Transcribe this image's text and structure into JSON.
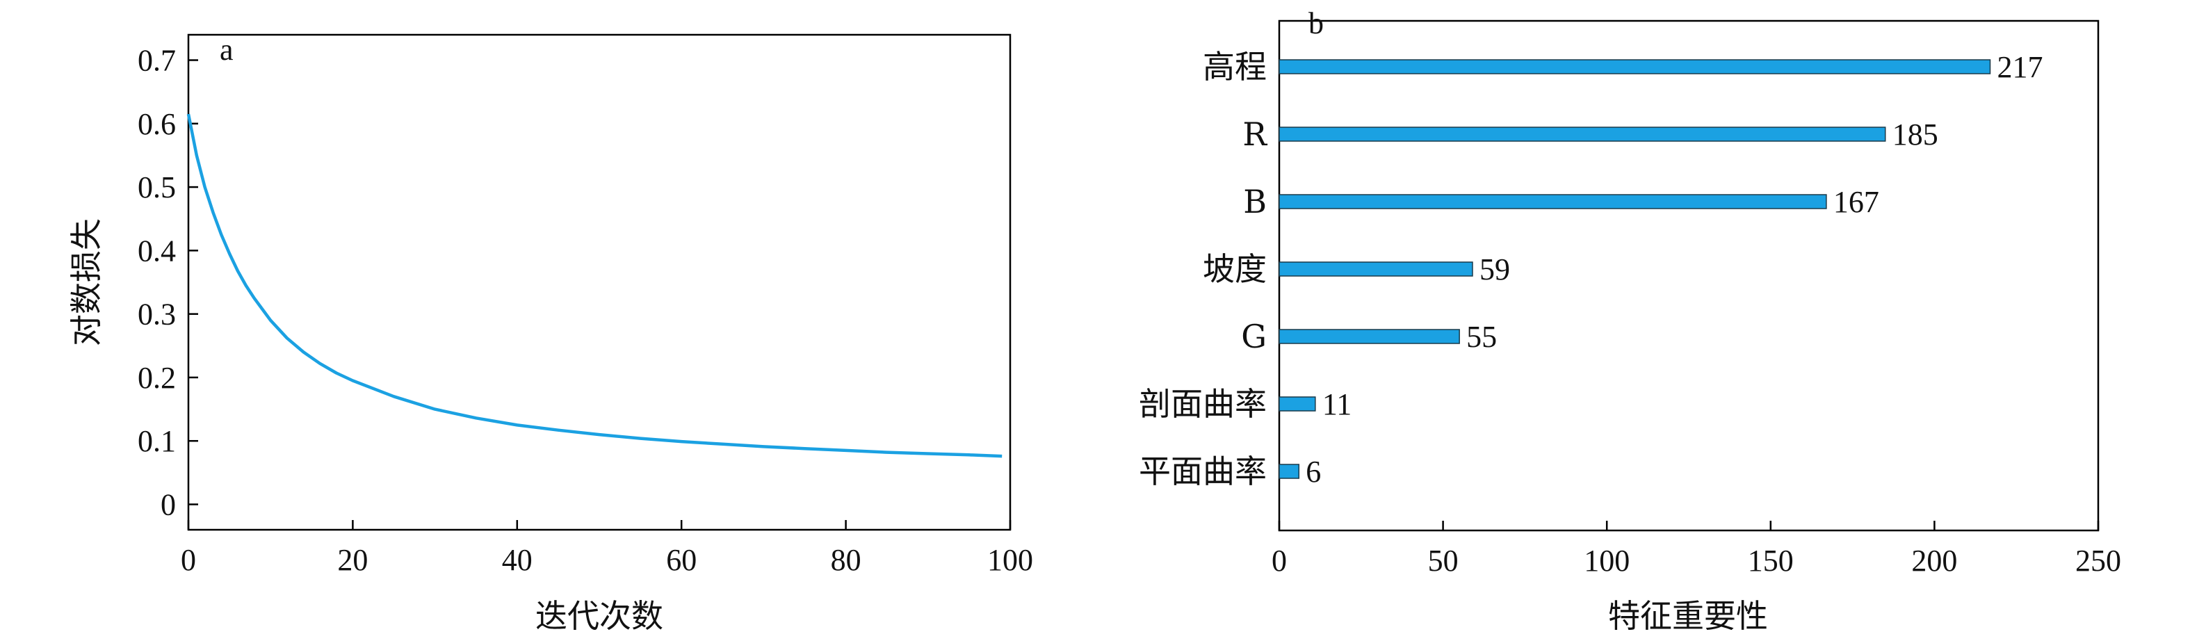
{
  "chart_data": [
    {
      "type": "line",
      "panel_label": "a",
      "xlabel": "迭代次数",
      "ylabel": "对数损失",
      "xlim": [
        0,
        100
      ],
      "ylim": [
        -0.04,
        0.74
      ],
      "xticks": [
        "0",
        "20",
        "40",
        "60",
        "80",
        "100"
      ],
      "yticks": [
        "0",
        "0.1",
        "0.2",
        "0.3",
        "0.4",
        "0.5",
        "0.6",
        "0.7"
      ],
      "color": "#1ba1e2",
      "series": [
        {
          "x": [
            0,
            1,
            2,
            3,
            4,
            5,
            6,
            7,
            8,
            10,
            12,
            14,
            16,
            18,
            20,
            25,
            30,
            35,
            40,
            45,
            50,
            55,
            60,
            65,
            70,
            75,
            80,
            85,
            90,
            95,
            99
          ],
          "y": [
            0.615,
            0.55,
            0.5,
            0.46,
            0.425,
            0.395,
            0.368,
            0.345,
            0.325,
            0.29,
            0.262,
            0.24,
            0.222,
            0.207,
            0.195,
            0.17,
            0.15,
            0.136,
            0.125,
            0.117,
            0.11,
            0.104,
            0.099,
            0.095,
            0.091,
            0.088,
            0.085,
            0.082,
            0.08,
            0.078,
            0.076
          ]
        }
      ]
    },
    {
      "type": "bar",
      "orientation": "horizontal",
      "panel_label": "b",
      "xlabel": "特征重要性",
      "xlim": [
        0,
        250
      ],
      "xticks": [
        "0",
        "50",
        "100",
        "150",
        "200",
        "250"
      ],
      "color": "#1ba1e2",
      "categories": [
        "高程",
        "R",
        "B",
        "坡度",
        "G",
        "剖面曲率",
        "平面曲率"
      ],
      "values": [
        217,
        185,
        167,
        59,
        55,
        11,
        6
      ],
      "value_labels": [
        "217",
        "185",
        "167",
        "59",
        "55",
        "11",
        "6"
      ]
    }
  ]
}
